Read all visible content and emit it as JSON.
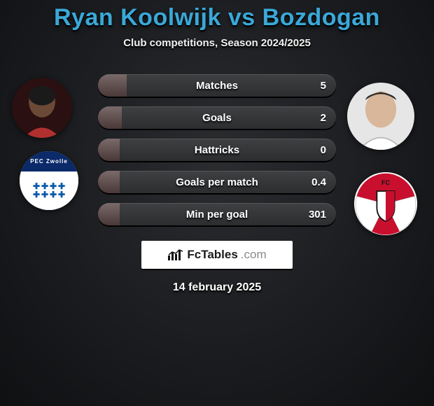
{
  "title_html": {
    "player1": "Ryan Koolwijk",
    "vs": "vs",
    "player2": "Bozdogan"
  },
  "title_color": "#3aa8d8",
  "subtitle": "Club competitions, Season 2024/2025",
  "date": "14 february 2025",
  "brand": {
    "name": "FcTables",
    "suffix": ".com"
  },
  "stats": [
    {
      "label": "Matches",
      "value": "5",
      "fill_pct": 12
    },
    {
      "label": "Goals",
      "value": "2",
      "fill_pct": 10
    },
    {
      "label": "Hattricks",
      "value": "0",
      "fill_pct": 9
    },
    {
      "label": "Goals per match",
      "value": "0.4",
      "fill_pct": 9
    },
    {
      "label": "Min per goal",
      "value": "301",
      "fill_pct": 9
    }
  ],
  "style": {
    "row_bg_top": "#3e4042",
    "row_bg_bottom": "#2b2d2f",
    "row_fill_top": "#7a6a6a",
    "row_fill_bot": "#4a3838",
    "label_fontsize": 15,
    "value_fontsize": 15
  },
  "left_player": {
    "name": "Ryan Koolwijk",
    "skin": "#6a4a36",
    "bg": "#2a1010",
    "shirt": "#b03030"
  },
  "right_player": {
    "name": "Bozdogan",
    "skin": "#d9b79b",
    "bg": "#e6e6e6",
    "shirt": "#ffffff"
  },
  "left_badge": {
    "club": "PEC Zwolle",
    "primary": "#0a2a6a",
    "secondary": "#0a5aa8"
  },
  "right_badge": {
    "club": "FC Utrecht",
    "red": "#c8102e",
    "white": "#ffffff",
    "black": "#111111"
  }
}
